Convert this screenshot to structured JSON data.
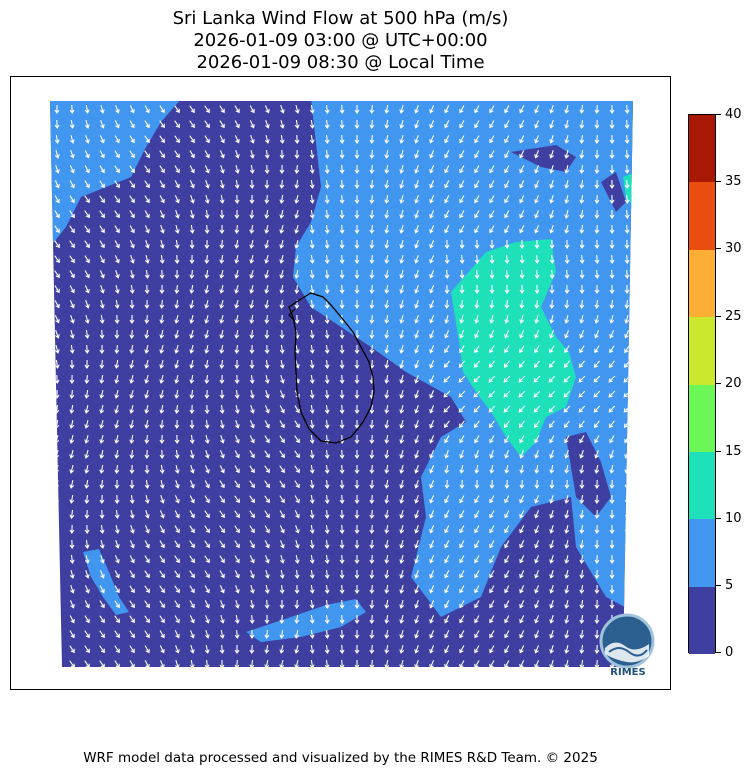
{
  "title": {
    "line1": "Sri Lanka Wind Flow at 500 hPa (m/s)",
    "line2": "2026-01-09 03:00 @ UTC+00:00",
    "line3": "2026-01-09 08:30 @ Local Time"
  },
  "colorbar": {
    "labels": [
      "0",
      "5",
      "10",
      "15",
      "20",
      "25",
      "30",
      "35",
      "40"
    ],
    "colors": [
      "#3e3fa0",
      "#4196f0",
      "#1ee0b9",
      "#6cf658",
      "#cce82e",
      "#fcae35",
      "#e94e0f",
      "#a91805"
    ]
  },
  "map": {
    "water_low_color": "#3e3fa0",
    "mid_color": "#4196f0",
    "high_color": "#1ee0b9",
    "arrow_color": "#ffffff",
    "coast_color": "#000000"
  },
  "logo": {
    "text": "RIMES"
  },
  "footer": "WRF model data processed and visualized by the RIMES R&D Team. © 2025"
}
